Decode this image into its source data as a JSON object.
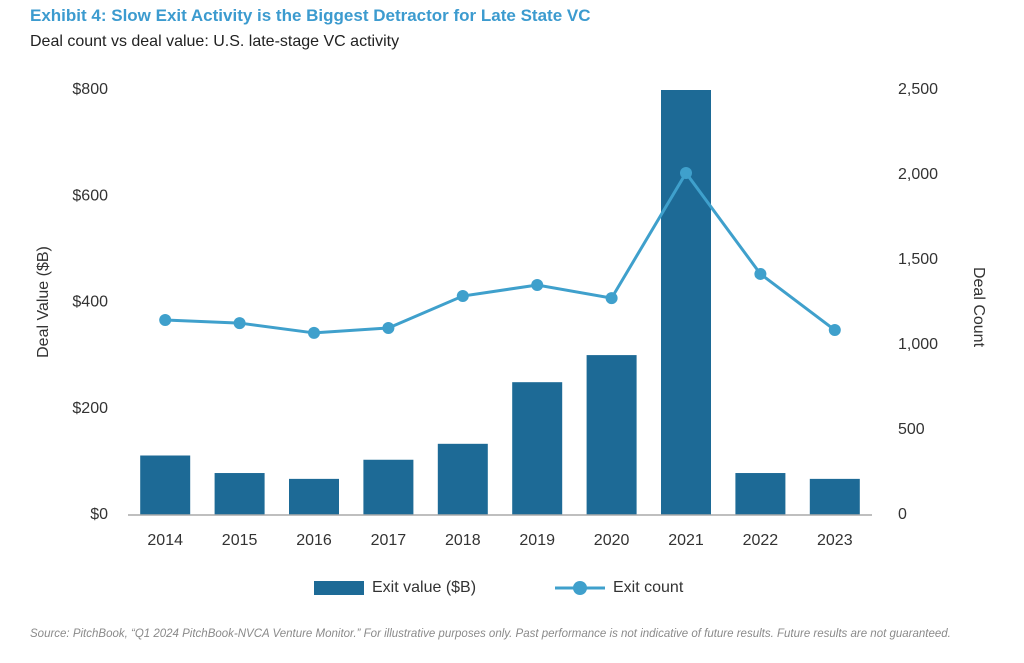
{
  "chart_data": {
    "type": "bar_line",
    "title": "Exhibit 4: Slow Exit Activity is the Biggest Detractor for Late State VC",
    "subtitle": "Deal count vs deal value: U.S. late-stage VC activity",
    "y_label": "Deal Value ($B)",
    "y2_label": "Deal Count",
    "categories": [
      "2014",
      "2015",
      "2016",
      "2017",
      "2018",
      "2019",
      "2020",
      "2021",
      "2022",
      "2023"
    ],
    "series": [
      {
        "name": "Exit value ($B)",
        "type": "bar",
        "color": "#1d6a96",
        "values": [
          112,
          79,
          68,
          104,
          134,
          250,
          301,
          800,
          79,
          68
        ]
      },
      {
        "name": "Exit count",
        "type": "line",
        "axis": "y2",
        "color": "#3fa0cc",
        "values": [
          1147,
          1129,
          1071,
          1100,
          1288,
          1353,
          1276,
          2012,
          1418,
          1088
        ]
      }
    ],
    "ylim": [
      0,
      800
    ],
    "yticks": [
      {
        "value": 0,
        "label": "$0"
      },
      {
        "value": 200,
        "label": "$200"
      },
      {
        "value": 400,
        "label": "$400"
      },
      {
        "value": 600,
        "label": "$600"
      },
      {
        "value": 800,
        "label": "$800"
      }
    ],
    "y2lim": [
      0,
      2500
    ],
    "y2ticks": [
      0,
      500,
      {
        "value": 1000,
        "label": "1,000"
      },
      {
        "value": 1500,
        "label": "1,500"
      },
      {
        "value": 2000,
        "label": "2,000"
      },
      {
        "value": 2500,
        "label": "2,500"
      }
    ],
    "grid": false,
    "legend": "bottom",
    "source": "Source: PitchBook, “Q1 2024 PitchBook-NVCA Venture Monitor.” For illustrative purposes only. Past performance is not indicative of future results. Future results are not guaranteed."
  }
}
